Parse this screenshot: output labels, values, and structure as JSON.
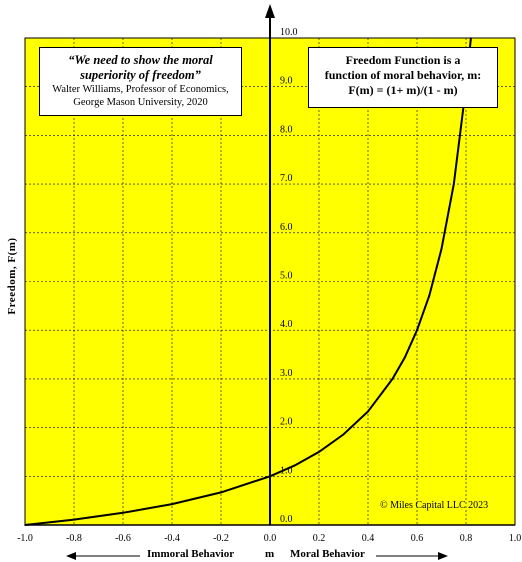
{
  "chart_data": {
    "type": "line",
    "formula": "F(m) = (1+ m)/(1 - m)",
    "x": [
      -1.0,
      -0.8,
      -0.6,
      -0.4,
      -0.2,
      0.0,
      0.1,
      0.2,
      0.3,
      0.4,
      0.5,
      0.55,
      0.6,
      0.65,
      0.7,
      0.75,
      0.8,
      0.82
    ],
    "y": [
      0.0,
      0.11,
      0.25,
      0.43,
      0.67,
      1.0,
      1.22,
      1.5,
      1.86,
      2.33,
      3.0,
      3.44,
      4.0,
      4.71,
      5.67,
      7.0,
      9.0,
      10.0
    ],
    "xlim": [
      -1.0,
      1.0
    ],
    "ylim": [
      0.0,
      10.0
    ],
    "x_ticks": [
      "-1.0",
      "-0.8",
      "-0.6",
      "-0.4",
      "-0.2",
      "0.0",
      "0.2",
      "0.4",
      "0.6",
      "0.8",
      "1.0"
    ],
    "y_ticks": [
      "0.0",
      "1.0",
      "2.0",
      "3.0",
      "4.0",
      "5.0",
      "6.0",
      "7.0",
      "8.0",
      "9.0",
      "10.0"
    ],
    "ylabel": "Freedom, F(m)",
    "xlabel_left": "Immoral Behavior",
    "xlabel_mid": "m",
    "xlabel_right": "Moral Behavior",
    "grid": true,
    "background_color": "#ffff00",
    "line_color": "#000000"
  },
  "quote": {
    "line1": "“We need to show the moral",
    "line2": "superiority of freedom”",
    "attribution1": "Walter Williams, Professor of Economics,",
    "attribution2": "George Mason University, 2020"
  },
  "formula_box": {
    "line1": "Freedom Function is a",
    "line2": "function of moral behavior, m:",
    "line3": "F(m) = (1+ m)/(1 - m)"
  },
  "copyright": "© Miles Capital LLC 2023"
}
